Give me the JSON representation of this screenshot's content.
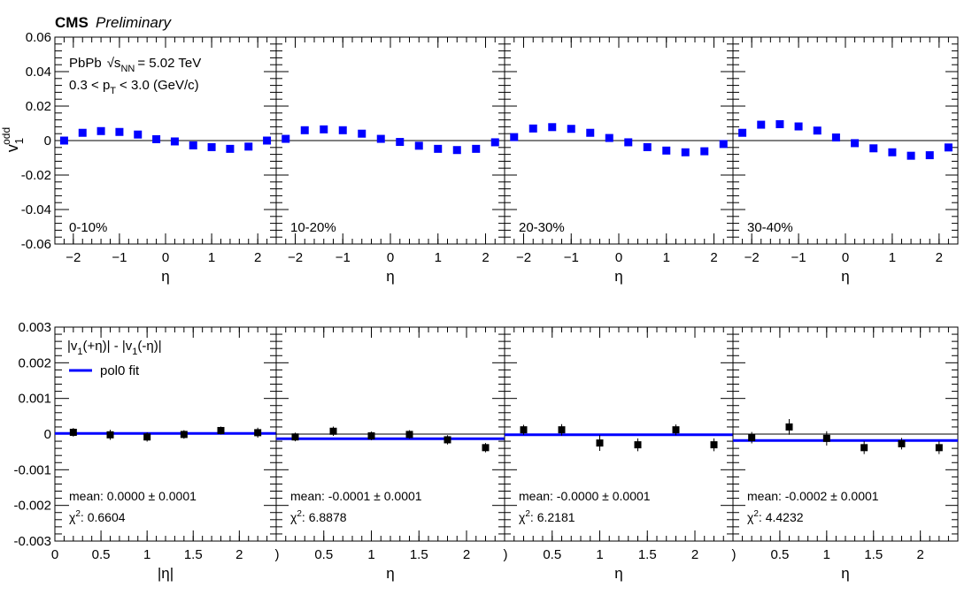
{
  "header": {
    "cms": "CMS",
    "preliminary": "Preliminary"
  },
  "chart_data": [
    {
      "type": "scatter",
      "row": "top",
      "ylabel_main": "v",
      "ylabel_sub": "1",
      "ylabel_sup": "odd",
      "xlabel": "η",
      "xlim": [
        -2.4,
        2.4
      ],
      "ylim": [
        -0.06,
        0.06
      ],
      "yticks": [
        "-0.06",
        "-0.04",
        "-0.02",
        "0",
        "0.02",
        "0.04",
        "0.06"
      ],
      "xticks": [
        "−2",
        "−1",
        "0",
        "1",
        "2"
      ],
      "annotations": {
        "system": "PbPb",
        "sqrt_s": "√s",
        "nn": "NN",
        "energy": "= 5.02 TeV",
        "pt_pre": "0.3 < p",
        "pt_sub": "T",
        "pt_post": "< 3.0 (GeV/c)"
      },
      "marker_color": "#0000ff",
      "x": [
        -2.2,
        -1.8,
        -1.4,
        -1.0,
        -0.6,
        -0.2,
        0.2,
        0.6,
        1.0,
        1.4,
        1.8,
        2.2
      ],
      "panels": [
        {
          "label": "0-10%",
          "y": [
            0.0,
            0.0045,
            0.0055,
            0.005,
            0.0035,
            0.0008,
            -0.0005,
            -0.0028,
            -0.0038,
            -0.0048,
            -0.0035,
            0.0
          ]
        },
        {
          "label": "10-20%",
          "y": [
            0.001,
            0.006,
            0.0065,
            0.006,
            0.004,
            0.001,
            -0.0008,
            -0.003,
            -0.0048,
            -0.0055,
            -0.0048,
            -0.001
          ]
        },
        {
          "label": "20-30%",
          "y": [
            0.002,
            0.007,
            0.0078,
            0.0068,
            0.0045,
            0.0015,
            -0.001,
            -0.0038,
            -0.0058,
            -0.0068,
            -0.0062,
            -0.002
          ]
        },
        {
          "label": "30-40%",
          "y": [
            0.0045,
            0.0092,
            0.0095,
            0.0082,
            0.0058,
            0.0018,
            -0.0015,
            -0.0045,
            -0.0068,
            -0.0088,
            -0.0085,
            -0.004
          ]
        }
      ]
    },
    {
      "type": "scatter",
      "row": "bottom",
      "xlabel_first": "|η|",
      "xlabel": "η",
      "xlim": [
        0,
        2.4
      ],
      "ylim": [
        -0.003,
        0.003
      ],
      "yticks": [
        "-0.003",
        "-0.002",
        "-0.001",
        "0",
        "0.001",
        "0.002",
        "0.003"
      ],
      "xticks_first": [
        "0",
        "0.5",
        "1",
        "1.5",
        "2"
      ],
      "xticks": [
        "0.5",
        "1",
        "1.5",
        "2"
      ],
      "xtick_edge": ")",
      "legend": {
        "line1_pre": "|v",
        "line1_s1": "1",
        "line1_mid": "(+η)| - |v",
        "line1_s2": "1",
        "line1_post": "(-η)|",
        "fit_label": "pol0 fit"
      },
      "marker_color": "#000000",
      "fit_color": "#0000ff",
      "x": [
        0.2,
        0.6,
        1.0,
        1.4,
        1.8,
        2.2
      ],
      "panels": [
        {
          "mean": "mean: 0.0000 ± 0.0001",
          "chi2_label": "χ",
          "chi2_value": ": 0.6604",
          "fit": 2e-05,
          "y": [
            5e-05,
            -2e-05,
            -8e-05,
            -1e-05,
            0.0001,
            4e-05
          ],
          "err": [
            0.00012,
            0.00014,
            0.00013,
            0.00012,
            0.00011,
            0.00014
          ]
        },
        {
          "mean": "mean: -0.0001 ± 0.0001",
          "chi2_label": "χ",
          "chi2_value": ": 6.8878",
          "fit": -0.00013,
          "y": [
            -8e-05,
            8e-05,
            -5e-05,
            -1e-05,
            -0.00016,
            -0.00038
          ],
          "err": [
            0.00012,
            0.00013,
            0.00012,
            0.00012,
            0.00013,
            0.00013
          ]
        },
        {
          "mean": "mean: -0.0000 ± 0.0001",
          "chi2_label": "χ",
          "chi2_value": ": 6.2181",
          "fit": -2e-05,
          "y": [
            0.00012,
            0.00012,
            -0.00025,
            -0.0003,
            0.00012,
            -0.0003
          ],
          "err": [
            0.00014,
            0.00016,
            0.00022,
            0.00018,
            0.00015,
            0.00018
          ]
        },
        {
          "mean": "mean: -0.0002 ± 0.0001",
          "chi2_label": "χ",
          "chi2_value": ": 4.4232",
          "fit": -0.00018,
          "y": [
            -0.0001,
            0.0002,
            -0.00012,
            -0.00038,
            -0.00027,
            -0.00038
          ],
          "err": [
            0.00016,
            0.00022,
            0.0002,
            0.00018,
            0.00016,
            0.00018
          ]
        }
      ]
    }
  ]
}
